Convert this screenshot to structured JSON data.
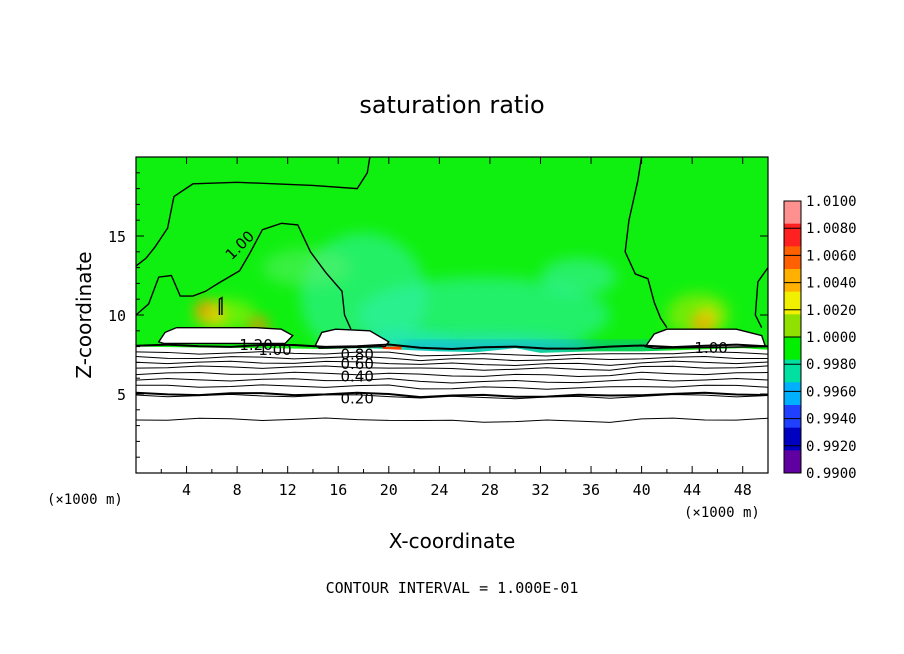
{
  "chart_data": {
    "type": "heatmap",
    "title": "saturation ratio",
    "xlabel": "X-coordinate",
    "ylabel": "Z-coordinate",
    "x_unit_left": "(×1000 m)",
    "x_unit_right": "(×1000 m)",
    "xlim": [
      0,
      50
    ],
    "ylim": [
      0,
      20
    ],
    "x_ticks": [
      4,
      8,
      12,
      16,
      20,
      24,
      28,
      32,
      36,
      40,
      44,
      48
    ],
    "y_ticks": [
      5,
      10,
      15
    ],
    "footer": "CONTOUR INTERVAL = 1.000E-01",
    "colorbar": {
      "labels": [
        "1.0100",
        "1.0080",
        "1.0060",
        "1.0040",
        "1.0020",
        "1.0000",
        "0.9980",
        "0.9960",
        "0.9940",
        "0.9920",
        "0.9900"
      ],
      "colors": [
        "#ff9090",
        "#ff2020",
        "#ff6000",
        "#ffb000",
        "#f0f000",
        "#90e000",
        "#00f000",
        "#00e0a0",
        "#00b0ff",
        "#2040ff",
        "#0000c0",
        "#6000a0"
      ]
    },
    "contour_labels": [
      {
        "text": "1.00",
        "x": 8.5,
        "y": 14.5
      },
      {
        "text": "1.20",
        "x": 9.5,
        "y": 8.1
      },
      {
        "text": "1.00",
        "x": 11.0,
        "y": 7.8
      },
      {
        "text": "0.80",
        "x": 17.5,
        "y": 7.5
      },
      {
        "text": "0.60",
        "x": 17.5,
        "y": 6.9
      },
      {
        "text": "0.40",
        "x": 17.5,
        "y": 6.1
      },
      {
        "text": "0.20",
        "x": 17.5,
        "y": 4.7
      },
      {
        "text": "1.00",
        "x": 45.5,
        "y": 7.9
      }
    ]
  }
}
